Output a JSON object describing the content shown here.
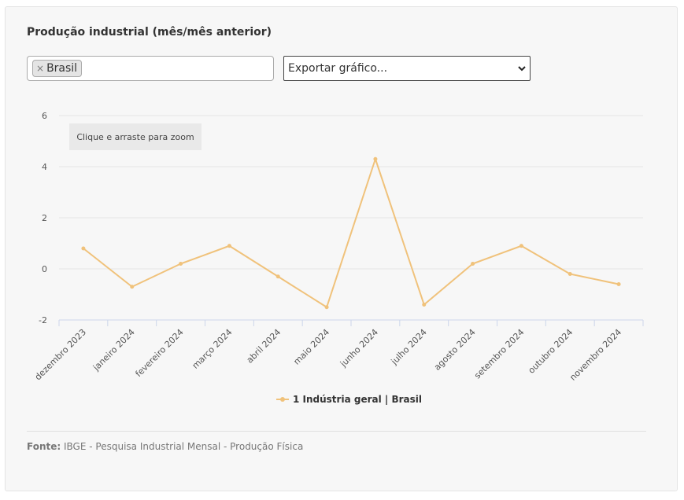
{
  "title": "Produção industrial (mês/mês anterior)",
  "series_select": {
    "tag_remove": "×",
    "tag": "Brasil"
  },
  "export_select": {
    "label": "Exportar gráfico..."
  },
  "zoom_hint": "Clique e arraste para zoom",
  "source": {
    "label": "Fonte:",
    "text": "IBGE - Pesquisa Industrial Mensal - Produção Física"
  },
  "colors": {
    "series": "#f0c27b",
    "grid": "#e6e6e6",
    "axis": "#ccd6eb"
  },
  "chart_data": {
    "type": "line",
    "categories": [
      "dezembro 2023",
      "janeiro 2024",
      "fevereiro 2024",
      "março 2024",
      "abril 2024",
      "maio 2024",
      "junho 2024",
      "julho 2024",
      "agosto 2024",
      "setembro 2024",
      "outubro 2024",
      "novembro 2024"
    ],
    "series": [
      {
        "name": "1 Indústria geral | Brasil",
        "values": [
          0.8,
          -0.7,
          0.2,
          0.9,
          -0.3,
          -1.5,
          4.3,
          -1.4,
          0.2,
          0.9,
          -0.2,
          -0.6
        ]
      }
    ],
    "y_ticks": [
      "6",
      "4",
      "2",
      "0",
      "-2"
    ],
    "ylim": [
      -2,
      6
    ],
    "grid": true,
    "legend": "bottom-center"
  }
}
